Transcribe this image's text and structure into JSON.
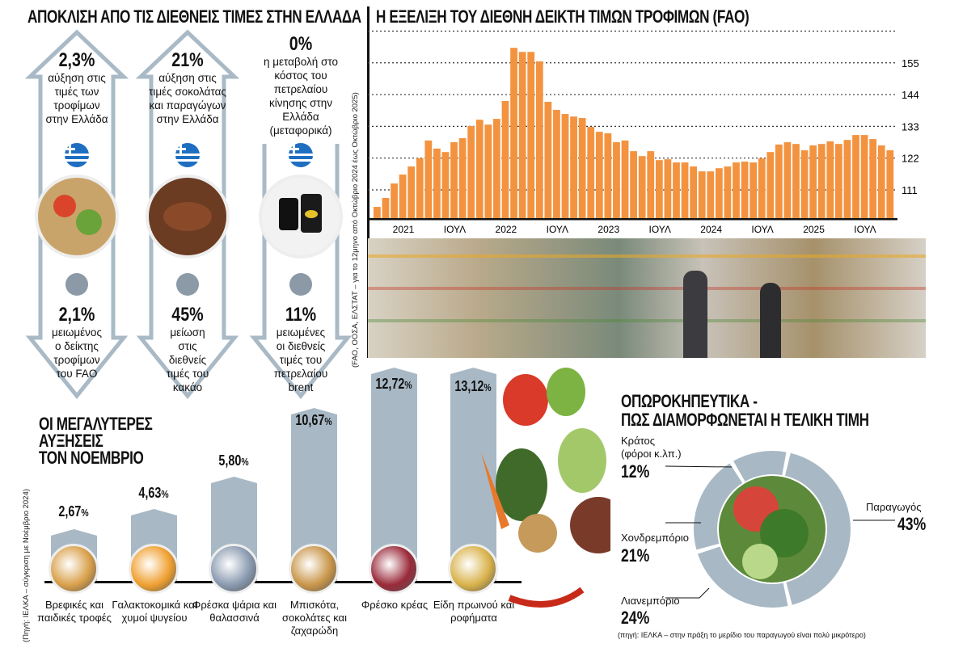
{
  "left": {
    "title": "ΑΠΟΚΛΙΣΗ ΑΠΟ ΤΙΣ ΔΙΕΘΝΕΙΣ ΤΙΜΕΣ ΣΤΗΝ ΕΛΛΑΔΑ",
    "columns": [
      {
        "up_pct": "2,3%",
        "up_text": "αύξηση στις τιμές των τροφίμων στην Ελλάδα",
        "down_pct": "2,1%",
        "down_text": "μειωμένος ο δείκτης τροφίμων του FAO"
      },
      {
        "up_pct": "21%",
        "up_text": "αύξηση στις τιμές σοκολάτας και παραγώγων στην Ελλάδα",
        "down_pct": "45%",
        "down_text": "μείωση στις διεθνείς τιμές του κακάο"
      },
      {
        "up_pct": "0%",
        "up_text": "η μεταβολή στο κόστος του πετρελαίου κίνησης στην Ελλάδα (μεταφορικά)",
        "down_pct": "11%",
        "down_text": "μειωμένες οι διεθνείς τιμές του πετρελαίου brent"
      }
    ],
    "source": "(FAO, ΟΟΣΑ, ΕΛΣΤΑΤ – για το 12μηνο από Οκτώβριο 2024 έως Οκτώβριο 2025)"
  },
  "chart_data": {
    "type": "bar",
    "title": "Η ΕΞΕΛΙΞΗ ΤΟΥ ΔΙΕΘΝΗ ΔΕΙΚΤΗ ΤΙΜΩΝ ΤΡΟΦΙΜΩΝ (FAO)",
    "bar_color": "#f39340",
    "yticks": [
      111,
      122,
      133,
      144,
      155
    ],
    "ylim": [
      101.2,
      165
    ],
    "xtick_labels": [
      {
        "i": 3,
        "t": "2021"
      },
      {
        "i": 9,
        "t": "ΙΟΥΛ"
      },
      {
        "i": 15,
        "t": "2022"
      },
      {
        "i": 21,
        "t": "ΙΟΥΛ"
      },
      {
        "i": 27,
        "t": "2023"
      },
      {
        "i": 33,
        "t": "ΙΟΥΛ"
      },
      {
        "i": 39,
        "t": "2024"
      },
      {
        "i": 45,
        "t": "ΙΟΥΛ"
      },
      {
        "i": 51,
        "t": "2025"
      },
      {
        "i": 57,
        "t": "ΙΟΥΛ"
      }
    ],
    "values": [
      105.1,
      108.2,
      113.2,
      116.3,
      119.1,
      122.0,
      128.1,
      125.3,
      124.1,
      127.5,
      128.9,
      133.1,
      135.3,
      133.6,
      135.6,
      141.8,
      160.2,
      158.8,
      158.8,
      155.5,
      141.5,
      138.7,
      137.3,
      136.4,
      135.9,
      132.8,
      131.1,
      130.6,
      127.5,
      128.1,
      124.4,
      122.7,
      124.4,
      121.3,
      121.6,
      120.5,
      120.5,
      119.1,
      117.4,
      117.4,
      118.5,
      119.1,
      120.5,
      120.8,
      120.5,
      121.9,
      124.1,
      126.7,
      127.5,
      126.9,
      124.7,
      126.4,
      126.9,
      127.8,
      126.9,
      128.3,
      130.0,
      130.0,
      128.6,
      126.4,
      124.7
    ]
  },
  "increases": {
    "title": [
      "ΟΙ ΜΕΓΑΛΥΤΕΡΕΣ",
      "ΑΥΞΗΣΕΙΣ",
      "ΤΟΝ ΝΟΕΜΒΡΙΟ"
    ],
    "source": "(Πηγή: ΙΕΛΚΑ – σύγκριση με Νοέμβριο 2024)",
    "items": [
      {
        "value": "2,67",
        "label": "Βρεφικές και παιδικές τροφές",
        "v": 2.67
      },
      {
        "value": "4,63",
        "label": "Γαλακτοκομικά και χυμοί ψυγείου",
        "v": 4.63
      },
      {
        "value": "5,80",
        "label": "Φρέσκα ψάρια και θαλασσινά",
        "v": 5.8
      },
      {
        "value": "10,67",
        "label": "Μπισκότα, σοκολάτες και ζαχαρώδη",
        "v": 10.67
      },
      {
        "value": "12,72",
        "label": "Φρέσκο κρέας",
        "v": 12.72
      },
      {
        "value": "13,12",
        "label": "Είδη πρωινού και ροφήματα",
        "v": 13.12
      }
    ],
    "pct_sign": "%"
  },
  "donut": {
    "title1": "ΟΠΩΡΟΚΗΠΕΥΤΙΚΑ -",
    "title2": "ΠΩΣ ΔΙΑΜΟΡΦΩΝΕΤΑΙ Η ΤΕΛΙΚΗ ΤΙΜΗ",
    "segments": [
      {
        "label": "Παραγωγός",
        "value": "43%",
        "v": 43
      },
      {
        "label": "Λιανεμπόριο",
        "value": "24%",
        "v": 24
      },
      {
        "label": "Χονδρεμπόριο",
        "value": "21%",
        "v": 21
      },
      {
        "label": "Κράτος",
        "label2": "(φόροι κ.λπ.)",
        "value": "12%",
        "v": 12
      }
    ],
    "color": "#a8b9c5",
    "note": "(πηγή: ΙΕΛΚΑ – στην πράξη το μερίδιο του παραγωγού είναι πολύ μικρότερο)"
  }
}
